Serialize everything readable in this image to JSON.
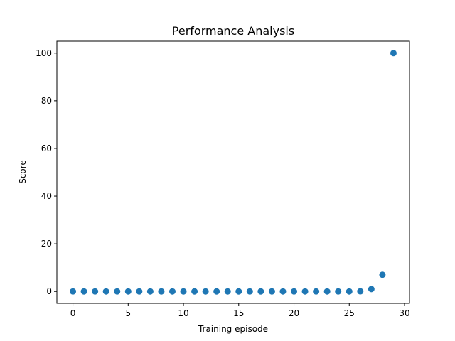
{
  "chart_data": {
    "type": "scatter",
    "title": "Performance Analysis",
    "xlabel": "Training episode",
    "ylabel": "Score",
    "xlim": [
      -1.45,
      30.45
    ],
    "ylim": [
      -5,
      105
    ],
    "xticks": [
      0,
      5,
      10,
      15,
      20,
      25,
      30
    ],
    "yticks": [
      0,
      20,
      40,
      60,
      80,
      100
    ],
    "grid": false,
    "marker_color": "#1f77b4",
    "series": [
      {
        "x": [
          0,
          1,
          2,
          3,
          4,
          5,
          6,
          7,
          8,
          9,
          10,
          11,
          12,
          13,
          14,
          15,
          16,
          17,
          18,
          19,
          20,
          21,
          22,
          23,
          24,
          25,
          26,
          27,
          28,
          29
        ],
        "y": [
          0,
          0,
          0,
          0,
          0,
          0,
          0,
          0,
          0,
          0,
          0,
          0,
          0,
          0,
          0,
          0,
          0,
          0,
          0,
          0,
          0,
          0,
          0,
          0,
          0,
          0,
          0.05,
          1,
          7,
          100
        ]
      }
    ]
  }
}
